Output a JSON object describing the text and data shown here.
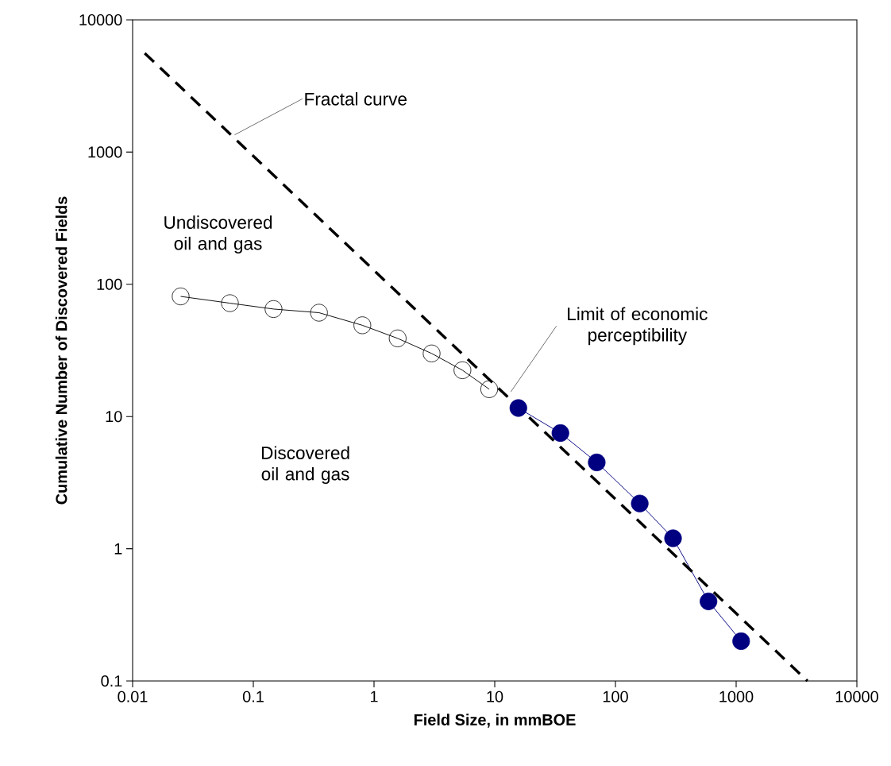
{
  "chart_data": {
    "type": "line",
    "xlabel": "Field Size, in mmBOE",
    "ylabel": "Cumulative Number of Discovered Fields",
    "log": "xy",
    "marker": "circle",
    "grid": false,
    "xlim": [
      0.01,
      10000
    ],
    "ylim": [
      0.1,
      10000
    ],
    "xticks": [
      0.01,
      0.1,
      1,
      10,
      100,
      1000,
      10000
    ],
    "yticks": [
      0.1,
      1,
      10,
      100,
      1000,
      10000
    ],
    "series": [
      {
        "color": "#000000",
        "x": [
          0.025,
          0.064,
          0.147,
          0.35,
          0.8,
          1.57,
          3.0,
          5.4,
          9.0
        ],
        "values": [
          81,
          72,
          65,
          61,
          49,
          39,
          30,
          22.4,
          16.1
        ]
      },
      {
        "color": "#000080",
        "x": [
          15.7,
          35,
          70,
          159,
          300,
          590,
          1100
        ],
        "values": [
          11.6,
          7.5,
          4.5,
          2.2,
          1.2,
          0.4,
          0.2
        ]
      },
      {
        "color": "#000000",
        "marker": "none",
        "line_style": "dashed",
        "x": [
          0.0126,
          3900
        ],
        "values": [
          5600,
          0.1
        ]
      }
    ],
    "annotations": [
      {
        "text": "Fractal curve",
        "x": 0.07,
        "y": 1350
      },
      "Limit of economic perceptibility",
      "Undiscovered oil and gas",
      "Discovered oil and gas"
    ]
  }
}
